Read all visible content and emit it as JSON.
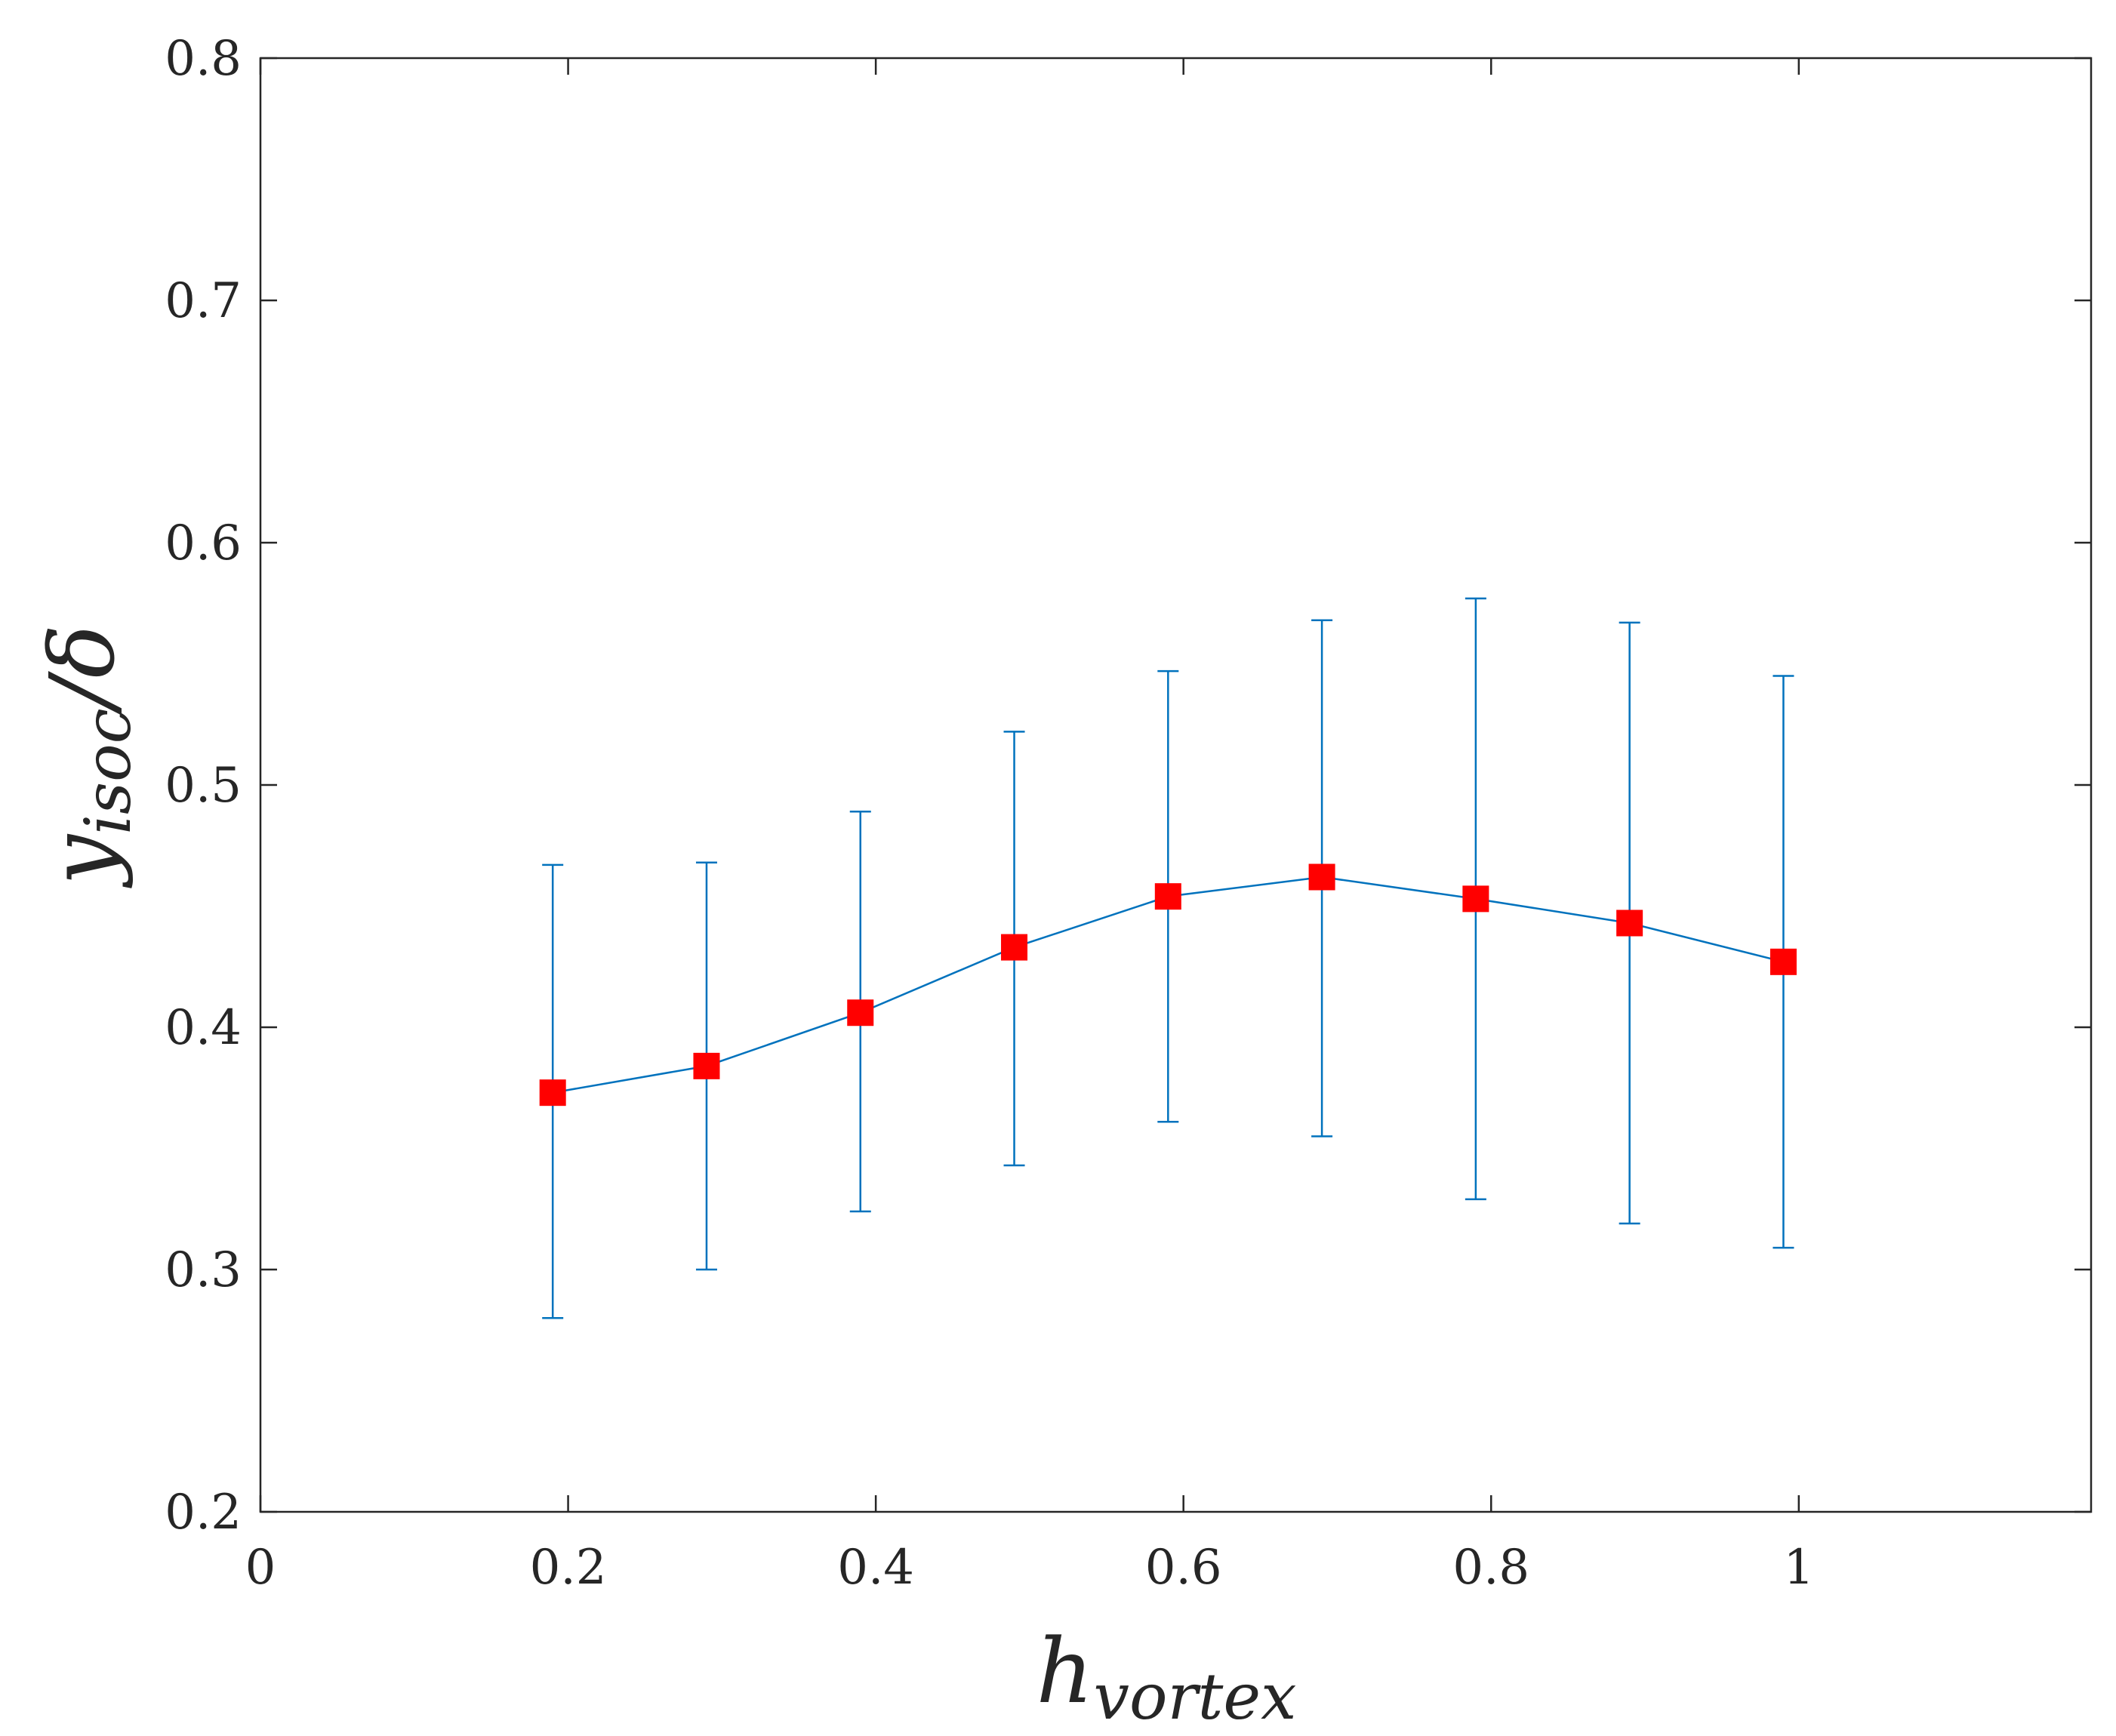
{
  "chart_data": {
    "type": "scatter",
    "xlabel": {
      "main": "h",
      "sub": "vortex"
    },
    "ylabel": {
      "main": "y",
      "sub": "isoc",
      "suffix": "/δ"
    },
    "xlim": [
      0,
      1.19
    ],
    "ylim": [
      0.2,
      0.8
    ],
    "xticks": [
      0,
      0.2,
      0.4,
      0.6,
      0.8,
      1
    ],
    "xtick_labels": [
      "0",
      "0.2",
      "0.4",
      "0.6",
      "0.8",
      "1"
    ],
    "yticks": [
      0.2,
      0.3,
      0.4,
      0.5,
      0.6,
      0.7,
      0.8
    ],
    "ytick_labels": [
      "0.2",
      "0.3",
      "0.4",
      "0.5",
      "0.6",
      "0.7",
      "0.8"
    ],
    "grid": false,
    "series": [
      {
        "x": [
          0.19,
          0.29,
          0.39,
          0.49,
          0.59,
          0.69,
          0.79,
          0.89,
          0.99
        ],
        "y": [
          0.373,
          0.384,
          0.406,
          0.433,
          0.454,
          0.462,
          0.453,
          0.443,
          0.427
        ],
        "y_low": [
          0.28,
          0.3,
          0.324,
          0.343,
          0.361,
          0.355,
          0.329,
          0.319,
          0.309
        ],
        "y_high": [
          0.467,
          0.468,
          0.489,
          0.522,
          0.547,
          0.568,
          0.577,
          0.567,
          0.545
        ],
        "line_color": "#0072BD",
        "marker_color": "#FF0000",
        "marker": "square"
      }
    ]
  }
}
